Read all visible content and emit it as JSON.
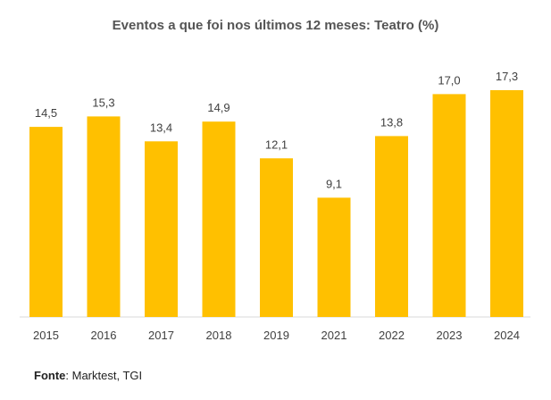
{
  "chart_data": {
    "type": "bar",
    "title": "Eventos a que foi nos últimos 12 meses: Teatro (%)",
    "categories": [
      "2015",
      "2016",
      "2017",
      "2018",
      "2019",
      "2021",
      "2022",
      "2023",
      "2024"
    ],
    "values": [
      14.5,
      15.3,
      13.4,
      14.9,
      12.1,
      9.1,
      13.8,
      17.0,
      17.3
    ],
    "value_labels": [
      "14,5",
      "15,3",
      "13,4",
      "14,9",
      "12,1",
      "9,1",
      "13,8",
      "17,0",
      "17,3"
    ],
    "xlabel": "",
    "ylabel": "",
    "ylim": [
      0,
      17.3
    ],
    "grid": false,
    "bar_color": "#FFC000"
  },
  "source": {
    "label": "Fonte",
    "text": ": Marktest, TGI"
  }
}
